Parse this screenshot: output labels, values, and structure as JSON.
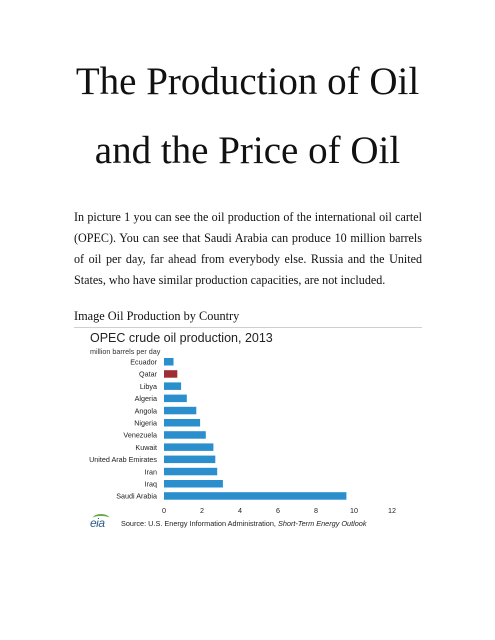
{
  "document": {
    "title_line1": "The Production of Oil",
    "title_line2": "and the Price of Oil",
    "paragraph": "In picture 1 you can see the oil production of the international oil cartel (OPEC). You can see that Saudi Arabia can produce 10 million barrels of oil per day, far ahead from everybody else. Russia and the United States, who have similar production capacities, are not included.",
    "caption": "Image Oil Production by Country"
  },
  "figure": {
    "logo_text": "eia",
    "source_prefix": "Source: U.S. Energy Information  Administration, ",
    "source_italic": "Short-Term Energy Outlook"
  },
  "colors": {
    "bar": "#2a8fcc",
    "highlight": "#9e2e34"
  },
  "chart_data": {
    "type": "bar",
    "orientation": "horizontal",
    "title": "OPEC crude oil production, 2013",
    "subtitle": "million barrels  per day",
    "categories": [
      "Ecuador",
      "Qatar",
      "Libya",
      "Algeria",
      "Angola",
      "Nigeria",
      "Venezuela",
      "Kuwait",
      "United Arab Emirates",
      "Iran",
      "Iraq",
      "Saudi Arabia"
    ],
    "values": [
      0.5,
      0.7,
      0.9,
      1.2,
      1.7,
      1.9,
      2.2,
      2.6,
      2.7,
      2.8,
      3.1,
      9.6
    ],
    "highlighted": "Qatar",
    "xlim": [
      0,
      12
    ],
    "xticks": [
      "0",
      "2",
      "4",
      "6",
      "8",
      "10",
      "12"
    ],
    "grid": false,
    "legend": "none"
  }
}
